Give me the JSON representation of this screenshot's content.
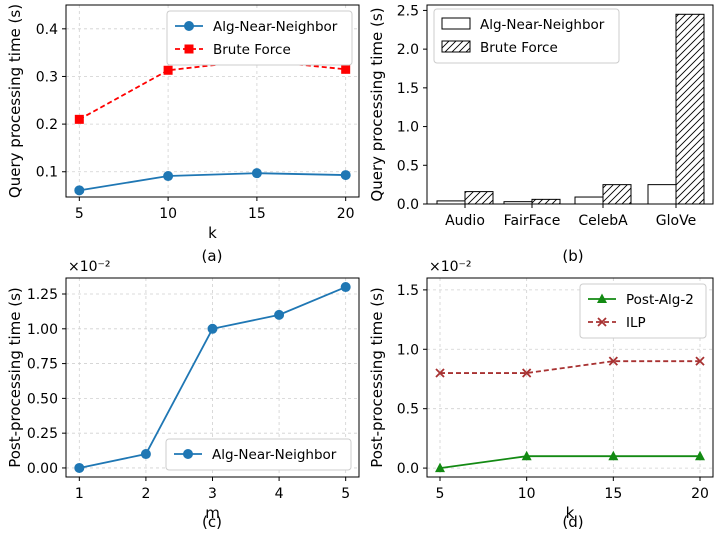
{
  "chart_data": [
    {
      "id": "a",
      "type": "line",
      "panel_label": "(a)",
      "xlabel": "k",
      "ylabel": "Query processing time (s)",
      "x": [
        5,
        10,
        15,
        20
      ],
      "xticks": [
        "5",
        "10",
        "15",
        "20"
      ],
      "yticks": [
        "0.1",
        "0.2",
        "0.3",
        "0.4"
      ],
      "xlim": [
        4.25,
        20.75
      ],
      "ylim": [
        0.047,
        0.45
      ],
      "grid": true,
      "legend_loc": "top-right",
      "series": [
        {
          "name": "Alg-Near-Neighbor",
          "values": [
            0.061,
            0.091,
            0.097,
            0.093
          ],
          "color": "#1f77b4",
          "marker": "circle",
          "dash": "solid"
        },
        {
          "name": "Brute Force",
          "values": [
            0.21,
            0.313,
            0.334,
            0.315
          ],
          "color": "#ff0000",
          "marker": "square",
          "dash": "dashed"
        }
      ]
    },
    {
      "id": "b",
      "type": "bar",
      "panel_label": "(b)",
      "xlabel": "",
      "ylabel": "Query processing time (s)",
      "categories": [
        "Audio",
        "FairFace",
        "CelebA",
        "GloVe"
      ],
      "yticks": [
        "0.0",
        "0.5",
        "1.0",
        "1.5",
        "2.0",
        "2.5"
      ],
      "ylim": [
        0,
        2.57
      ],
      "grid": false,
      "legend_loc": "top-left",
      "series": [
        {
          "name": "Alg-Near-Neighbor",
          "values": [
            0.04,
            0.03,
            0.09,
            0.25
          ],
          "hatch": "none"
        },
        {
          "name": "Brute Force",
          "values": [
            0.16,
            0.06,
            0.25,
            2.45
          ],
          "hatch": "diagonal"
        }
      ]
    },
    {
      "id": "c",
      "type": "line",
      "panel_label": "(c)",
      "xlabel": "m",
      "ylabel": "Post-processing time (s)",
      "scale_label": "×10⁻²",
      "x": [
        1,
        2,
        3,
        4,
        5
      ],
      "xticks": [
        "1",
        "2",
        "3",
        "4",
        "5"
      ],
      "yticks": [
        "0.00",
        "0.25",
        "0.50",
        "0.75",
        "1.00",
        "1.25"
      ],
      "xlim": [
        0.8,
        5.2
      ],
      "ylim": [
        -0.065,
        1.365
      ],
      "grid": true,
      "legend_loc": "bottom-right",
      "series": [
        {
          "name": "Alg-Near-Neighbor",
          "values": [
            0.0,
            0.1,
            1.0,
            1.1,
            1.3
          ],
          "color": "#1f77b4",
          "marker": "circle",
          "dash": "solid"
        }
      ]
    },
    {
      "id": "d",
      "type": "line",
      "panel_label": "(d)",
      "xlabel": "k",
      "ylabel": "Post-processing time (s)",
      "scale_label": "×10⁻²",
      "x": [
        5,
        10,
        15,
        20
      ],
      "xticks": [
        "5",
        "10",
        "15",
        "20"
      ],
      "yticks": [
        "0.0",
        "0.5",
        "1.0",
        "1.5"
      ],
      "xlim": [
        4.25,
        20.75
      ],
      "ylim": [
        -0.075,
        1.6
      ],
      "grid": true,
      "legend_loc": "top-right",
      "series": [
        {
          "name": "Post-Alg-2",
          "values": [
            0.0,
            0.1,
            0.1,
            0.1
          ],
          "color": "#138a13",
          "marker": "triangle",
          "dash": "solid"
        },
        {
          "name": "ILP",
          "values": [
            0.8,
            0.8,
            0.9,
            0.9
          ],
          "color": "#a83232",
          "marker": "x",
          "dash": "dashed"
        }
      ]
    }
  ]
}
